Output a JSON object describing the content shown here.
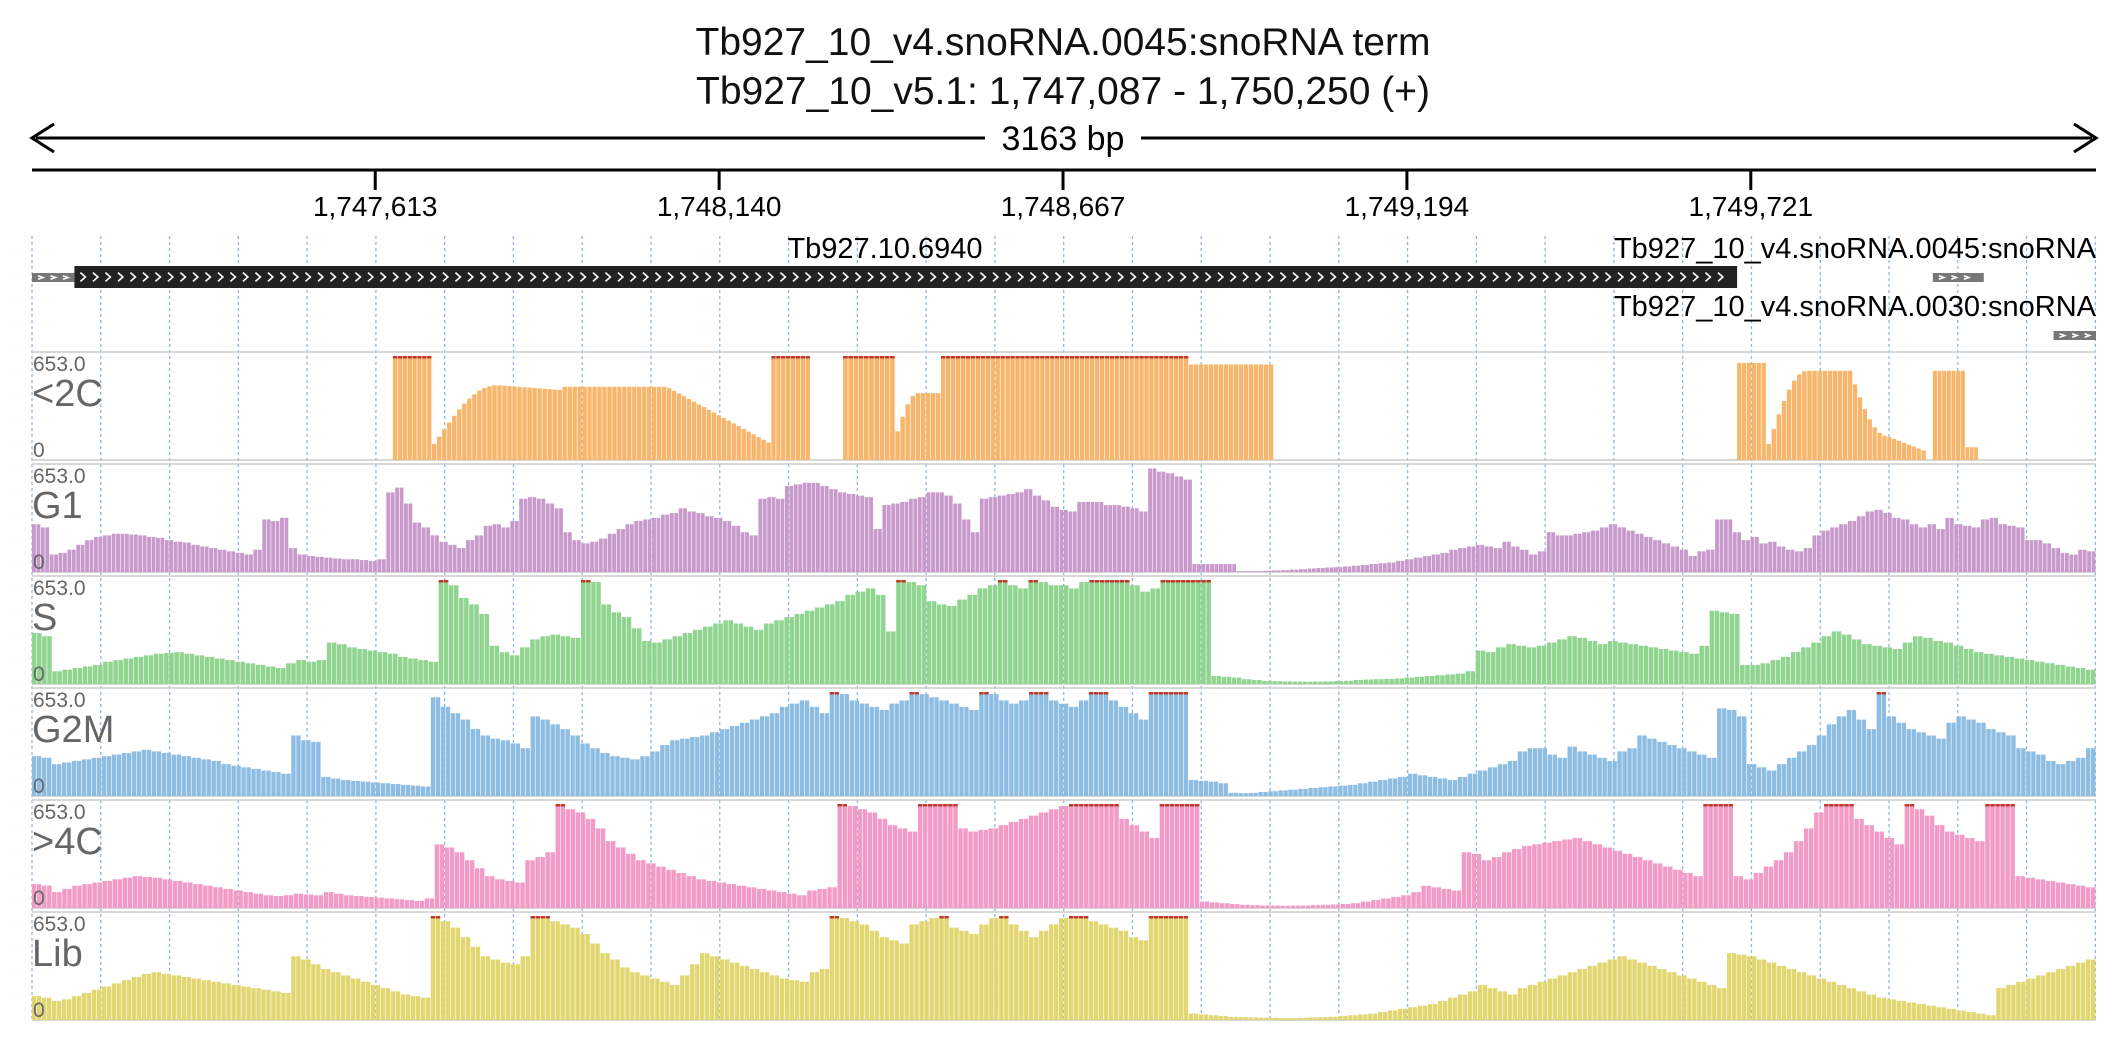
{
  "title": "Tb927_10_v4.snoRNA.0045:snoRNA  term",
  "locus": "Tb927_10_v5.1: 1,747,087 - 1,750,250 (+)",
  "span_label": "3163 bp",
  "ticks": [
    "1,747,613",
    "1,748,140",
    "1,748,667",
    "1,749,194",
    "1,749,721"
  ],
  "tick_positions": [
    1747613,
    1748140,
    1748667,
    1749194,
    1749721
  ],
  "colors": {
    "<2C": "#f8b66c",
    "G1": "#c79acb",
    "S": "#8fd48f",
    "G2M": "#8dbde3",
    ">4C": "#f29bc6",
    "Lib": "#e2d670",
    "clip": "#c0392b",
    "gene": "#222222"
  },
  "features": [
    {
      "name": "Tb927.10.6940",
      "start": 1747152,
      "end": 1749700,
      "strand": "+",
      "type": "gene"
    },
    {
      "name": "Tb927_10_v4.snoRNA.0045:snoRNA",
      "start": 1750000,
      "end": 1750078,
      "strand": "+",
      "type": "snoRNA"
    },
    {
      "name": "Tb927_10_v4.snoRNA.0030:snoRNA",
      "start": 1750185,
      "end": 1750250,
      "strand": "+",
      "type": "snoRNA"
    },
    {
      "name": "",
      "start": 1747087,
      "end": 1747152,
      "strand": "+",
      "type": "fragment"
    }
  ],
  "chart_data": {
    "type": "area",
    "title": "Tb927_10_v4.snoRNA.0045:snoRNA  term",
    "xlabel": "Tb927_10_v5.1",
    "xlim": [
      1747087,
      1750250
    ],
    "ylim": [
      0,
      653.0
    ],
    "y_max_label": "653.0",
    "y_min_label": "0",
    "bin_bp": 20,
    "series": [
      {
        "name": "<2C",
        "segments": [
          {
            "start": 1747640,
            "end": 1747700,
            "value": 653
          },
          {
            "start": 1747700,
            "end": 1747900,
            "value": 420,
            "shape": "curve",
            "from": 100,
            "to": 470,
            "to_end": 440
          },
          {
            "start": 1747900,
            "end": 1748220,
            "value": 460,
            "shape": "curve",
            "from": 460,
            "to": 460,
            "to_end": 110
          },
          {
            "start": 1748220,
            "end": 1748280,
            "value": 653
          },
          {
            "start": 1748330,
            "end": 1748410,
            "value": 653
          },
          {
            "start": 1748410,
            "end": 1748480,
            "value": 300,
            "shape": "curve",
            "from": 180,
            "to": 420,
            "to_end": 420
          },
          {
            "start": 1748480,
            "end": 1748860,
            "value": 653
          },
          {
            "start": 1748860,
            "end": 1748990,
            "value": 600
          },
          {
            "start": 1749700,
            "end": 1749745,
            "value": 610
          },
          {
            "start": 1749745,
            "end": 1749870,
            "value": 330,
            "shape": "curve",
            "from": 100,
            "to": 560,
            "to_end": 560
          },
          {
            "start": 1749870,
            "end": 1749990,
            "value": 400,
            "shape": "curve",
            "from": 560,
            "to": 150,
            "to_end": 60
          },
          {
            "start": 1750000,
            "end": 1750050,
            "value": 560
          },
          {
            "start": 1750050,
            "end": 1750070,
            "value": 80
          }
        ]
      },
      {
        "name": "G1",
        "values": [
          300,
          280,
          110,
          120,
          140,
          170,
          200,
          220,
          230,
          240,
          240,
          235,
          230,
          220,
          215,
          200,
          190,
          185,
          170,
          160,
          150,
          140,
          130,
          120,
          110,
          140,
          330,
          320,
          340,
          150,
          110,
          100,
          95,
          90,
          85,
          80,
          80,
          75,
          70,
          80,
          500,
          530,
          430,
          310,
          280,
          230,
          190,
          170,
          150,
          200,
          230,
          290,
          300,
          280,
          320,
          460,
          470,
          460,
          430,
          400,
          250,
          200,
          180,
          190,
          210,
          240,
          270,
          300,
          320,
          330,
          340,
          360,
          370,
          400,
          380,
          370,
          350,
          340,
          320,
          290,
          250,
          230,
          460,
          470,
          460,
          540,
          550,
          560,
          560,
          540,
          520,
          500,
          490,
          480,
          470,
          270,
          420,
          430,
          440,
          460,
          470,
          500,
          500,
          480,
          430,
          330,
          250,
          460,
          470,
          480,
          490,
          500,
          520,
          480,
          450,
          410,
          390,
          380,
          440,
          440,
          440,
          420,
          420,
          410,
          400,
          380,
          650,
          630,
          620,
          600,
          580,
          50,
          50,
          50,
          50,
          50,
          5,
          5,
          5,
          8,
          10,
          12,
          15,
          18,
          22,
          25,
          28,
          30,
          35,
          40,
          45,
          50,
          55,
          60,
          70,
          80,
          90,
          100,
          110,
          120,
          140,
          150,
          160,
          170,
          160,
          150,
          190,
          160,
          140,
          110,
          130,
          250,
          230,
          230,
          240,
          250,
          260,
          280,
          300,
          280,
          260,
          240,
          220,
          200,
          180,
          160,
          140,
          100,
          130,
          140,
          330,
          330,
          250,
          200,
          220,
          180,
          190,
          160,
          140,
          130,
          150,
          230,
          260,
          280,
          300,
          320,
          350,
          380,
          390,
          370,
          340,
          330,
          300,
          280,
          300,
          270,
          340,
          300,
          290,
          280,
          330,
          340,
          300,
          290,
          280,
          200,
          200,
          180,
          150,
          120,
          110,
          140,
          130
        ]
      },
      {
        "name": "S",
        "values": [
          320,
          300,
          80,
          90,
          100,
          110,
          120,
          140,
          150,
          160,
          170,
          180,
          190,
          195,
          200,
          190,
          180,
          170,
          160,
          150,
          140,
          130,
          120,
          110,
          100,
          130,
          150,
          140,
          150,
          260,
          250,
          230,
          220,
          210,
          200,
          190,
          170,
          160,
          150,
          140,
          653,
          620,
          540,
          500,
          440,
          240,
          200,
          180,
          230,
          280,
          300,
          310,
          300,
          290,
          653,
          640,
          500,
          450,
          420,
          350,
          270,
          260,
          280,
          300,
          320,
          340,
          360,
          380,
          400,
          380,
          360,
          340,
          380,
          400,
          420,
          440,
          460,
          480,
          500,
          520,
          560,
          580,
          600,
          560,
          330,
          653,
          640,
          620,
          520,
          500,
          490,
          530,
          560,
          600,
          620,
          653,
          620,
          600,
          653,
          640,
          620,
          620,
          600,
          640,
          653,
          653,
          653,
          653,
          620,
          580,
          600,
          653,
          653,
          653,
          653,
          653,
          50,
          45,
          40,
          30,
          25,
          20,
          18,
          16,
          15,
          14,
          15,
          16,
          18,
          20,
          25,
          28,
          30,
          32,
          35,
          40,
          45,
          50,
          55,
          60,
          65,
          80,
          210,
          200,
          230,
          250,
          240,
          230,
          240,
          260,
          280,
          300,
          290,
          270,
          250,
          270,
          260,
          250,
          240,
          230,
          220,
          210,
          200,
          190,
          240,
          460,
          450,
          440,
          120,
          120,
          130,
          150,
          170,
          200,
          230,
          260,
          300,
          330,
          310,
          280,
          250,
          240,
          230,
          220,
          260,
          300,
          290,
          270,
          260,
          240,
          220,
          200,
          190,
          180,
          170,
          160,
          150,
          140,
          130,
          120,
          110,
          100,
          90
        ]
      },
      {
        "name": "G2M",
        "values": [
          250,
          240,
          200,
          210,
          220,
          230,
          240,
          250,
          260,
          270,
          280,
          290,
          280,
          270,
          260,
          250,
          240,
          230,
          220,
          200,
          190,
          180,
          170,
          160,
          150,
          140,
          380,
          350,
          340,
          120,
          110,
          100,
          95,
          90,
          85,
          80,
          75,
          70,
          65,
          60,
          620,
          560,
          520,
          480,
          420,
          380,
          360,
          350,
          330,
          300,
          500,
          480,
          450,
          420,
          380,
          330,
          300,
          270,
          250,
          240,
          230,
          250,
          280,
          320,
          350,
          360,
          370,
          380,
          400,
          420,
          440,
          460,
          480,
          500,
          520,
          560,
          580,
          600,
          560,
          520,
          653,
          640,
          600,
          580,
          560,
          540,
          580,
          600,
          653,
          640,
          620,
          600,
          580,
          560,
          540,
          653,
          640,
          600,
          580,
          600,
          653,
          653,
          600,
          580,
          560,
          600,
          653,
          653,
          600,
          560,
          520,
          480,
          653,
          653,
          653,
          653,
          100,
          95,
          90,
          80,
          20,
          18,
          20,
          25,
          30,
          35,
          40,
          45,
          50,
          55,
          60,
          65,
          70,
          80,
          90,
          100,
          110,
          120,
          140,
          130,
          120,
          110,
          100,
          120,
          140,
          160,
          180,
          200,
          220,
          280,
          300,
          300,
          260,
          240,
          310,
          280,
          260,
          240,
          220,
          280,
          300,
          380,
          360,
          340,
          320,
          300,
          280,
          260,
          240,
          550,
          540,
          500,
          200,
          180,
          160,
          200,
          240,
          280,
          320,
          380,
          450,
          500,
          540,
          480,
          420,
          653,
          500,
          460,
          420,
          400,
          380,
          360,
          460,
          500,
          480,
          460,
          420,
          400,
          380,
          300,
          280,
          260,
          220,
          200,
          220,
          240,
          300
        ]
      },
      {
        "name": ">4C",
        "values": [
          150,
          140,
          100,
          120,
          140,
          150,
          160,
          170,
          180,
          190,
          200,
          195,
          190,
          180,
          170,
          160,
          150,
          140,
          130,
          120,
          110,
          100,
          90,
          80,
          75,
          80,
          90,
          85,
          80,
          100,
          90,
          80,
          75,
          70,
          65,
          60,
          55,
          50,
          45,
          60,
          400,
          380,
          350,
          300,
          250,
          200,
          180,
          170,
          160,
          300,
          320,
          350,
          653,
          620,
          600,
          560,
          500,
          420,
          380,
          340,
          300,
          280,
          260,
          240,
          220,
          200,
          180,
          170,
          160,
          150,
          140,
          130,
          120,
          110,
          100,
          90,
          80,
          110,
          120,
          130,
          653,
          640,
          620,
          600,
          560,
          520,
          500,
          480,
          653,
          653,
          653,
          653,
          500,
          480,
          490,
          500,
          520,
          540,
          560,
          580,
          600,
          620,
          640,
          653,
          653,
          653,
          653,
          653,
          560,
          520,
          480,
          440,
          653,
          653,
          653,
          653,
          40,
          35,
          30,
          25,
          20,
          18,
          16,
          15,
          14,
          15,
          16,
          18,
          20,
          22,
          25,
          30,
          40,
          50,
          60,
          70,
          80,
          100,
          140,
          130,
          120,
          110,
          350,
          340,
          300,
          320,
          350,
          370,
          390,
          400,
          410,
          420,
          430,
          440,
          420,
          400,
          380,
          360,
          340,
          320,
          300,
          280,
          260,
          240,
          220,
          200,
          653,
          653,
          653,
          200,
          180,
          220,
          260,
          300,
          350,
          420,
          500,
          600,
          653,
          653,
          653,
          560,
          520,
          480,
          440,
          400,
          653,
          620,
          580,
          520,
          480,
          460,
          440,
          420,
          653,
          653,
          653,
          200,
          190,
          180,
          170,
          160,
          150,
          140,
          130
        ]
      },
      {
        "name": "Lib",
        "values": [
          150,
          140,
          120,
          130,
          150,
          170,
          190,
          210,
          230,
          250,
          270,
          290,
          300,
          290,
          280,
          270,
          260,
          250,
          240,
          230,
          220,
          210,
          200,
          190,
          180,
          170,
          400,
          380,
          350,
          320,
          300,
          280,
          260,
          240,
          220,
          200,
          180,
          160,
          150,
          140,
          653,
          620,
          580,
          520,
          460,
          400,
          380,
          360,
          350,
          400,
          653,
          653,
          620,
          600,
          580,
          540,
          480,
          420,
          380,
          330,
          300,
          280,
          260,
          240,
          220,
          280,
          350,
          420,
          400,
          380,
          360,
          340,
          320,
          300,
          280,
          260,
          250,
          240,
          300,
          320,
          653,
          640,
          620,
          600,
          560,
          520,
          500,
          480,
          600,
          620,
          640,
          653,
          580,
          560,
          540,
          600,
          640,
          653,
          600,
          560,
          520,
          560,
          600,
          640,
          653,
          653,
          620,
          600,
          580,
          560,
          520,
          500,
          653,
          653,
          653,
          653,
          40,
          35,
          30,
          25,
          20,
          18,
          16,
          15,
          14,
          12,
          12,
          14,
          16,
          18,
          20,
          25,
          30,
          35,
          40,
          50,
          60,
          70,
          80,
          90,
          100,
          120,
          140,
          160,
          180,
          220,
          200,
          180,
          160,
          200,
          220,
          240,
          260,
          280,
          300,
          320,
          340,
          360,
          380,
          400,
          380,
          360,
          340,
          320,
          300,
          280,
          260,
          240,
          220,
          200,
          420,
          410,
          400,
          380,
          360,
          340,
          320,
          300,
          280,
          260,
          240,
          220,
          200,
          180,
          160,
          140,
          130,
          120,
          110,
          100,
          90,
          80,
          70,
          60,
          50,
          40,
          30,
          200,
          220,
          240,
          260,
          280,
          300,
          320,
          340,
          360,
          380
        ]
      }
    ]
  }
}
